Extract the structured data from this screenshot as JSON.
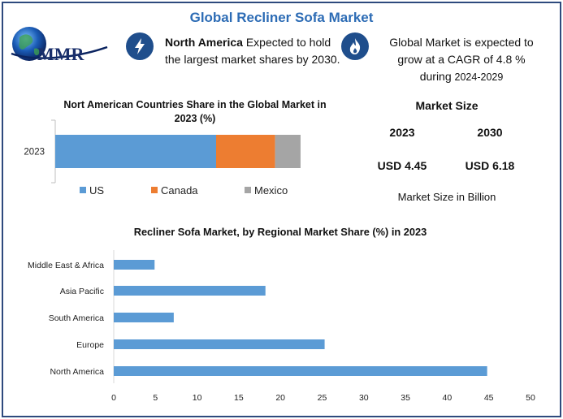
{
  "title": "Global Recliner Sofa Market",
  "logo": {
    "text": "MMR"
  },
  "highlights": {
    "region": {
      "icon": "lightning-icon",
      "bold": "North America",
      "text": " Expected to hold the largest market shares by 2030."
    },
    "growth": {
      "icon": "flame-icon",
      "text": "Global Market is expected to grow at a CAGR of 4.8 %",
      "period_prefix": "during ",
      "period": "2024-2029"
    }
  },
  "market_size": {
    "title": "Market Size",
    "year1": "2023",
    "year2": "2030",
    "value1": "USD 4.45",
    "value2": "USD 6.18",
    "note": "Market Size in Billion"
  },
  "colors": {
    "us": "#5b9bd5",
    "canada": "#ed7d31",
    "mexico": "#a5a5a5",
    "bar": "#5b9bd5",
    "title": "#2d6cb5",
    "frame": "#2e4a7d"
  },
  "chart_data": [
    {
      "type": "bar",
      "orientation": "horizontal",
      "stacked": true,
      "title": "Nort American Countries Share in the Global Market in 2023 (%)",
      "categories": [
        "2023"
      ],
      "series": [
        {
          "name": "US",
          "values": [
            60
          ]
        },
        {
          "name": "Canada",
          "values": [
            22
          ]
        },
        {
          "name": "Mexico",
          "values": [
            9.5
          ]
        }
      ],
      "xlim": [
        0,
        100
      ],
      "legend": "bottom",
      "grid": false
    },
    {
      "type": "bar",
      "orientation": "horizontal",
      "title": "Recliner Sofa Market, by Regional Market Share (%) in 2023",
      "categories": [
        "North America",
        "Europe",
        "South America",
        "Asia Pacific",
        "Middle East & Africa"
      ],
      "values": [
        44.8,
        25.3,
        7.2,
        18.2,
        4.9
      ],
      "xlim": [
        0,
        50
      ],
      "xticks": [
        "0",
        "5",
        "10",
        "15",
        "20",
        "25",
        "30",
        "35",
        "40",
        "45",
        "50"
      ],
      "grid": false
    }
  ]
}
